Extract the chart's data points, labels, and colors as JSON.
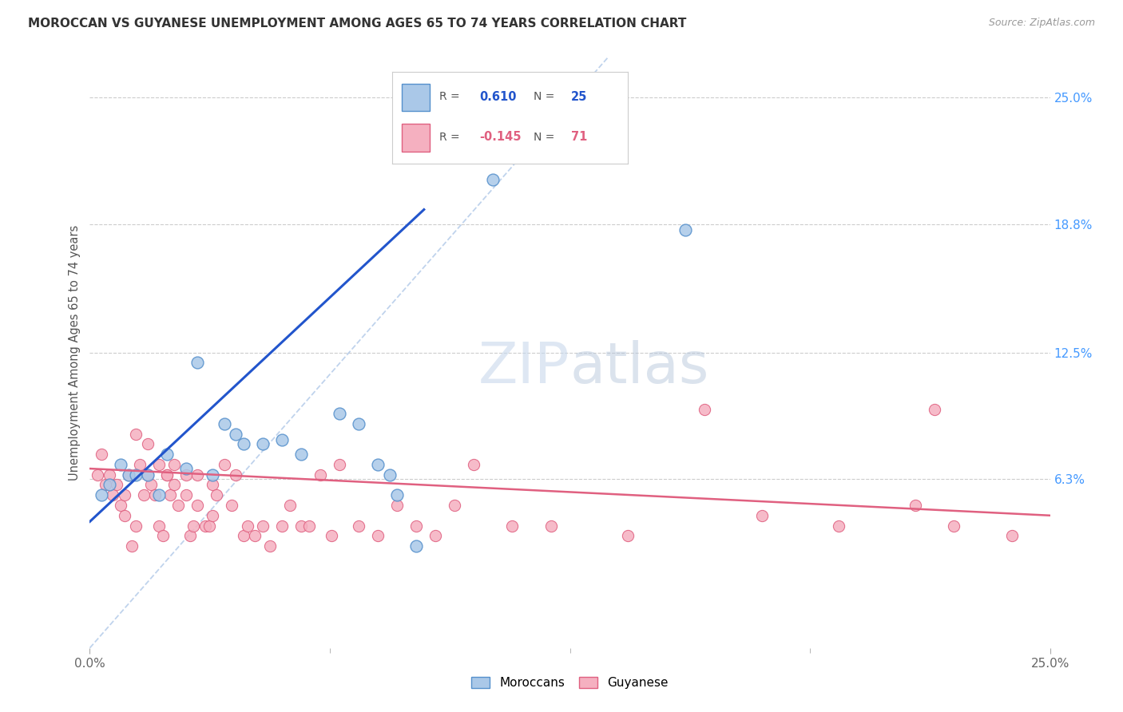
{
  "title": "MOROCCAN VS GUYANESE UNEMPLOYMENT AMONG AGES 65 TO 74 YEARS CORRELATION CHART",
  "source": "Source: ZipAtlas.com",
  "ylabel": "Unemployment Among Ages 65 to 74 years",
  "xlim": [
    0.0,
    0.25
  ],
  "ylim": [
    -0.02,
    0.27
  ],
  "moroccan_R": "0.610",
  "moroccan_N": "25",
  "guyanese_R": "-0.145",
  "guyanese_N": "71",
  "moroccan_fill": "#aac8e8",
  "moroccan_edge": "#5590cc",
  "guyanese_fill": "#f5b0c0",
  "guyanese_edge": "#e06080",
  "trend_blue": "#2255cc",
  "trend_pink": "#e06080",
  "diag_color": "#b0c8e8",
  "bg_color": "#ffffff",
  "grid_color": "#cccccc",
  "right_axis_color": "#4499ff",
  "ytick_vals": [
    0.063,
    0.125,
    0.188,
    0.25
  ],
  "ytick_labels": [
    "6.3%",
    "12.5%",
    "18.8%",
    "25.0%"
  ],
  "moroccan_x": [
    0.003,
    0.005,
    0.008,
    0.01,
    0.012,
    0.015,
    0.018,
    0.02,
    0.025,
    0.028,
    0.032,
    0.035,
    0.038,
    0.04,
    0.045,
    0.05,
    0.055,
    0.065,
    0.07,
    0.075,
    0.078,
    0.08,
    0.085,
    0.105,
    0.155
  ],
  "moroccan_y": [
    0.055,
    0.06,
    0.07,
    0.065,
    0.065,
    0.065,
    0.055,
    0.075,
    0.068,
    0.12,
    0.065,
    0.09,
    0.085,
    0.08,
    0.08,
    0.082,
    0.075,
    0.095,
    0.09,
    0.07,
    0.065,
    0.055,
    0.03,
    0.21,
    0.185
  ],
  "guyanese_x": [
    0.002,
    0.004,
    0.006,
    0.008,
    0.009,
    0.01,
    0.011,
    0.012,
    0.013,
    0.014,
    0.015,
    0.016,
    0.017,
    0.018,
    0.019,
    0.02,
    0.021,
    0.022,
    0.023,
    0.025,
    0.026,
    0.027,
    0.028,
    0.03,
    0.031,
    0.032,
    0.033,
    0.035,
    0.037,
    0.038,
    0.04,
    0.041,
    0.043,
    0.045,
    0.047,
    0.05,
    0.052,
    0.055,
    0.057,
    0.06,
    0.063,
    0.065,
    0.07,
    0.075,
    0.08,
    0.085,
    0.09,
    0.095,
    0.1,
    0.11,
    0.12,
    0.14,
    0.16,
    0.175,
    0.195,
    0.215,
    0.225,
    0.24,
    0.003,
    0.005,
    0.007,
    0.009,
    0.012,
    0.015,
    0.018,
    0.02,
    0.022,
    0.025,
    0.028,
    0.032,
    0.22
  ],
  "guyanese_y": [
    0.065,
    0.06,
    0.055,
    0.05,
    0.045,
    0.065,
    0.03,
    0.04,
    0.07,
    0.055,
    0.065,
    0.06,
    0.055,
    0.04,
    0.035,
    0.065,
    0.055,
    0.07,
    0.05,
    0.065,
    0.035,
    0.04,
    0.065,
    0.04,
    0.04,
    0.06,
    0.055,
    0.07,
    0.05,
    0.065,
    0.035,
    0.04,
    0.035,
    0.04,
    0.03,
    0.04,
    0.05,
    0.04,
    0.04,
    0.065,
    0.035,
    0.07,
    0.04,
    0.035,
    0.05,
    0.04,
    0.035,
    0.05,
    0.07,
    0.04,
    0.04,
    0.035,
    0.097,
    0.045,
    0.04,
    0.05,
    0.04,
    0.035,
    0.075,
    0.065,
    0.06,
    0.055,
    0.085,
    0.08,
    0.07,
    0.065,
    0.06,
    0.055,
    0.05,
    0.045,
    0.097
  ]
}
